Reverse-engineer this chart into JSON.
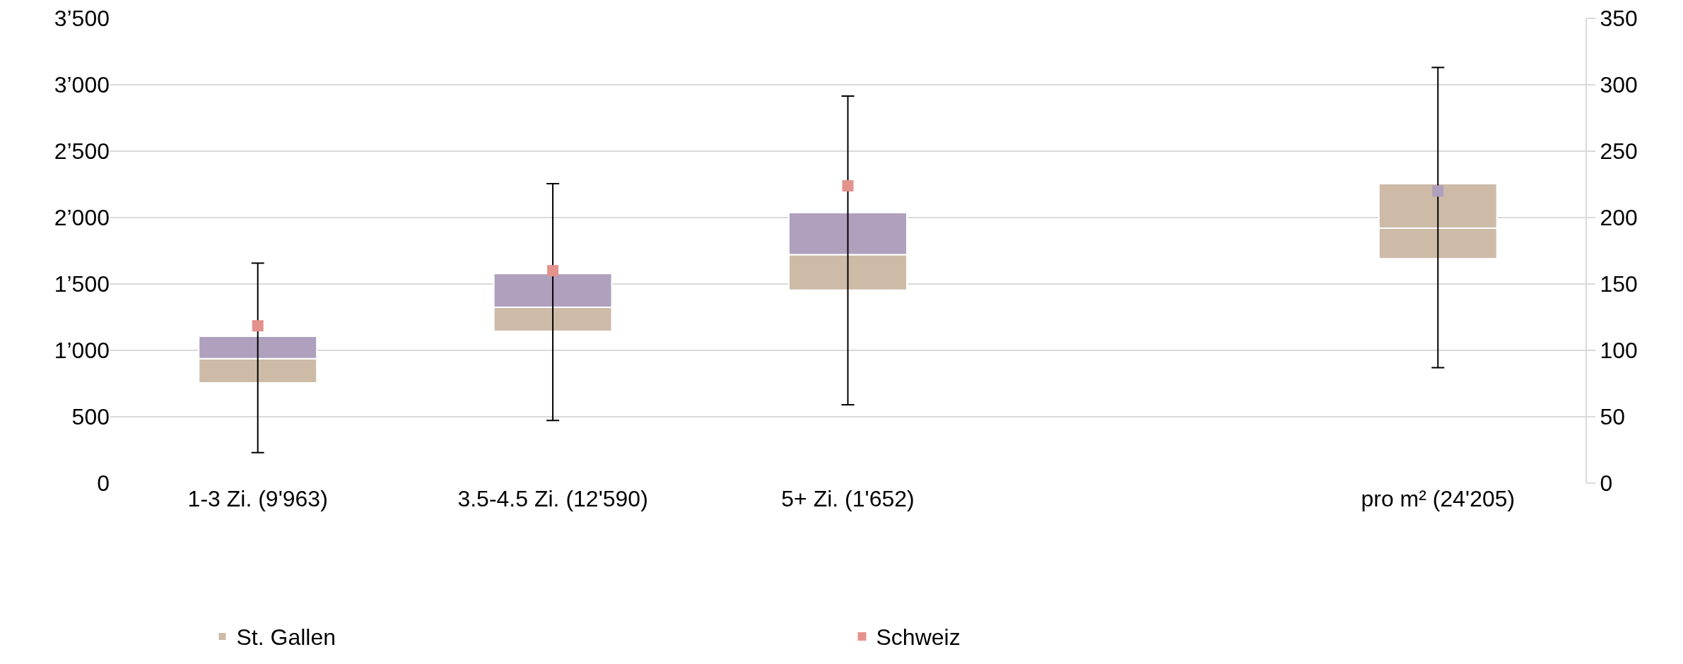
{
  "chart_data": {
    "type": "box",
    "categories": [
      "1-3 Zi. (9'963)",
      "3.5-4.5 Zi. (12'590)",
      "5+ Zi. (1'652)",
      null,
      "pro m² (24'205)"
    ],
    "series": [
      {
        "name": "St. Gallen",
        "color": "#afa0bd",
        "colors": [
          "#cdbba8",
          "#cdbba8",
          "#cdbba8",
          null,
          null
        ],
        "boxes": [
          {
            "low": 230,
            "q1": 755,
            "median": 938,
            "q3": 1106,
            "high": 1657
          },
          {
            "low": 472,
            "q1": 1144,
            "median": 1325,
            "q3": 1579,
            "high": 2255
          },
          {
            "low": 591,
            "q1": 1453,
            "median": 1721,
            "q3": 2037,
            "high": 2915
          },
          null,
          null
        ]
      },
      {
        "axis": "y2",
        "color": "#cdbba8",
        "colors": [
          null,
          null,
          null,
          null,
          "#cdbba8"
        ],
        "boxes": [
          null,
          null,
          null,
          null,
          {
            "low": 87,
            "q1": 169,
            "median": 192,
            "q3": 225.5,
            "high": 313
          }
        ]
      },
      {
        "name": "Schweiz",
        "type": "scatter",
        "color": "#e3928c",
        "values": [
          1185,
          1600,
          2239,
          null,
          null
        ]
      },
      {
        "type": "scatter",
        "axis": "y2",
        "color": "#afa0bd",
        "values": [
          null,
          null,
          null,
          null,
          220
        ]
      }
    ],
    "ylim": [
      0,
      3500
    ],
    "yticks": [
      0,
      {
        "value": 500,
        "label": "500"
      },
      {
        "value": 1000,
        "label": "1’000"
      },
      {
        "value": 1500,
        "label": "1’500"
      },
      {
        "value": 2000,
        "label": "2’000"
      },
      {
        "value": 2500,
        "label": "2’500"
      },
      {
        "value": 3000,
        "label": "3’000"
      },
      {
        "value": 3500,
        "label": "3’500"
      }
    ],
    "y2lim": [
      0,
      350
    ],
    "y2ticks": [
      0,
      50,
      100,
      150,
      200,
      250,
      300,
      350
    ],
    "grid": "y",
    "legend": "bottom",
    "marker": "square"
  }
}
